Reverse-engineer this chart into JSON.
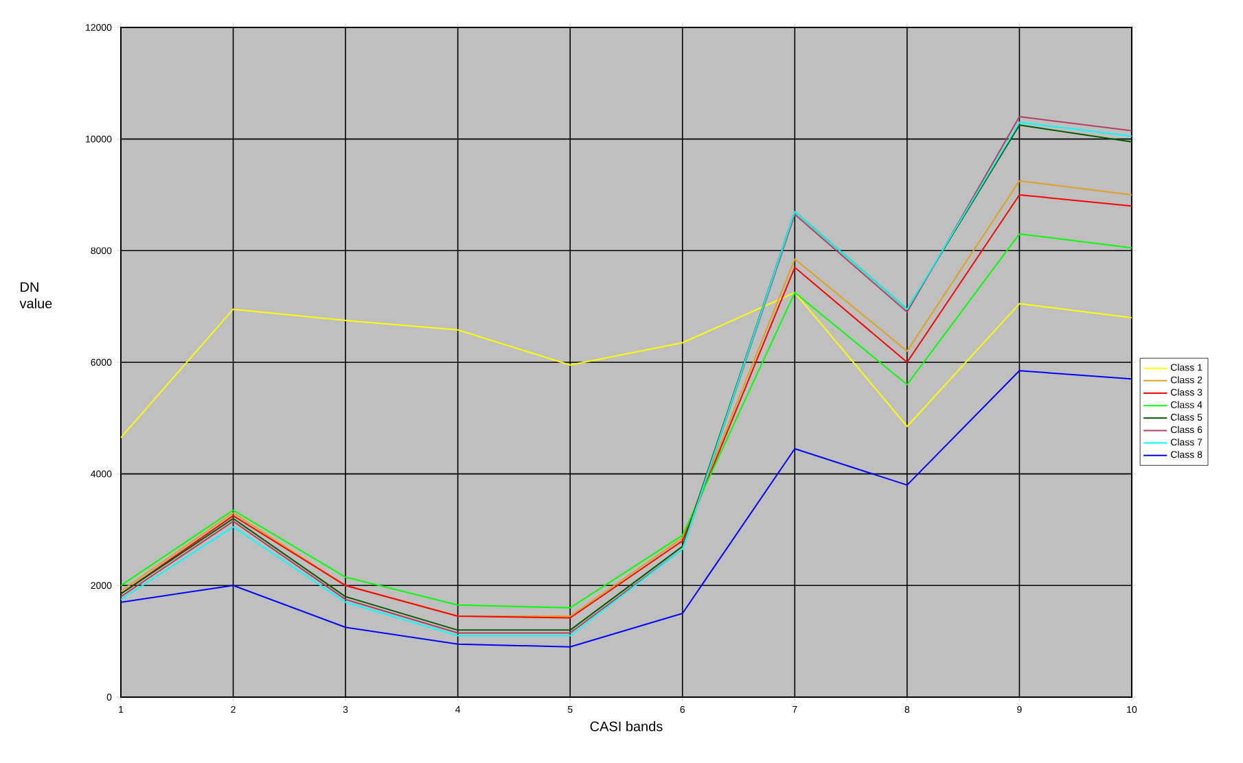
{
  "chart_data": {
    "type": "line",
    "xlabel": "CASI bands",
    "ylabel": "DN value",
    "x": [
      1,
      2,
      3,
      4,
      5,
      6,
      7,
      8,
      9,
      10
    ],
    "xlim": [
      1,
      10
    ],
    "xticks": [
      1,
      2,
      3,
      4,
      5,
      6,
      7,
      8,
      9,
      10
    ],
    "ylim": [
      0,
      12000
    ],
    "yticks": [
      0,
      2000,
      4000,
      6000,
      8000,
      10000,
      12000
    ],
    "grid": true,
    "legend": "right",
    "marker": "none",
    "line_style": "solid",
    "series": [
      {
        "name": "Class 1",
        "color": "#ffff00",
        "values": [
          4650,
          6950,
          6750,
          6580,
          5950,
          6350,
          7250,
          4850,
          7050,
          6800
        ]
      },
      {
        "name": "Class 2",
        "color": "#e0a020",
        "values": [
          1900,
          3300,
          2000,
          1450,
          1450,
          2850,
          7850,
          6200,
          9250,
          9000
        ]
      },
      {
        "name": "Class 3",
        "color": "#ff0000",
        "values": [
          1850,
          3250,
          2000,
          1450,
          1420,
          2800,
          7700,
          6000,
          9000,
          8800
        ]
      },
      {
        "name": "Class 4",
        "color": "#00ff00",
        "values": [
          2000,
          3350,
          2150,
          1650,
          1600,
          2900,
          7250,
          5600,
          8300,
          8050
        ]
      },
      {
        "name": "Class 5",
        "color": "#005a00",
        "values": [
          1850,
          3200,
          1800,
          1200,
          1200,
          2700,
          8700,
          6950,
          10250,
          9950
        ]
      },
      {
        "name": "Class 6",
        "color": "#b04060",
        "values": [
          1800,
          3150,
          1750,
          1150,
          1150,
          2650,
          8650,
          6900,
          10400,
          10150
        ]
      },
      {
        "name": "Class 7",
        "color": "#00ffff",
        "values": [
          1750,
          3050,
          1700,
          1100,
          1100,
          2650,
          8700,
          6950,
          10300,
          10050
        ]
      },
      {
        "name": "Class 8",
        "color": "#0000ff",
        "values": [
          1700,
          2000,
          1250,
          950,
          900,
          1500,
          4450,
          3800,
          5850,
          5700
        ]
      }
    ]
  }
}
